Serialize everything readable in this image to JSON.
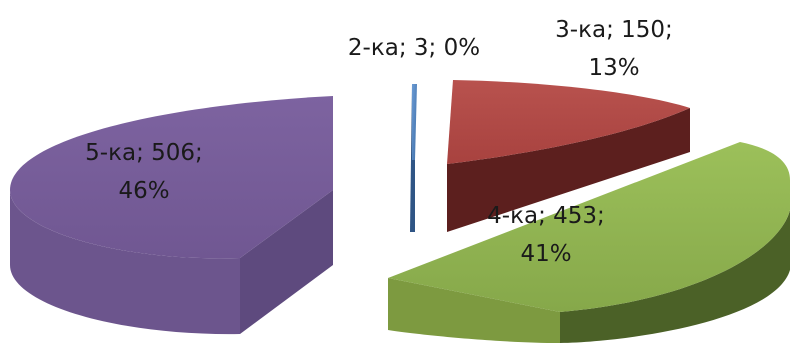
{
  "chart_data": {
    "type": "pie",
    "style": "3d-exploded",
    "title": "",
    "legend": "none",
    "slices": [
      {
        "name": "2-ка",
        "value": 3,
        "percent": 0,
        "color": "#4f81bd",
        "label_line1": "2-ка; 3; 0%",
        "label_line2": ""
      },
      {
        "name": "3-ка",
        "value": 150,
        "percent": 13,
        "color": "#c0504d",
        "label_line1": "3-ка; 150;",
        "label_line2": "13%"
      },
      {
        "name": "4-ка",
        "value": 453,
        "percent": 41,
        "color": "#9bbb59",
        "label_line1": "4-ка; 453;",
        "label_line2": "41%"
      },
      {
        "name": "5-ка",
        "value": 506,
        "percent": 46,
        "color": "#8064a2",
        "label_line1": "5-ка; 506;",
        "label_line2": "46%"
      }
    ]
  }
}
